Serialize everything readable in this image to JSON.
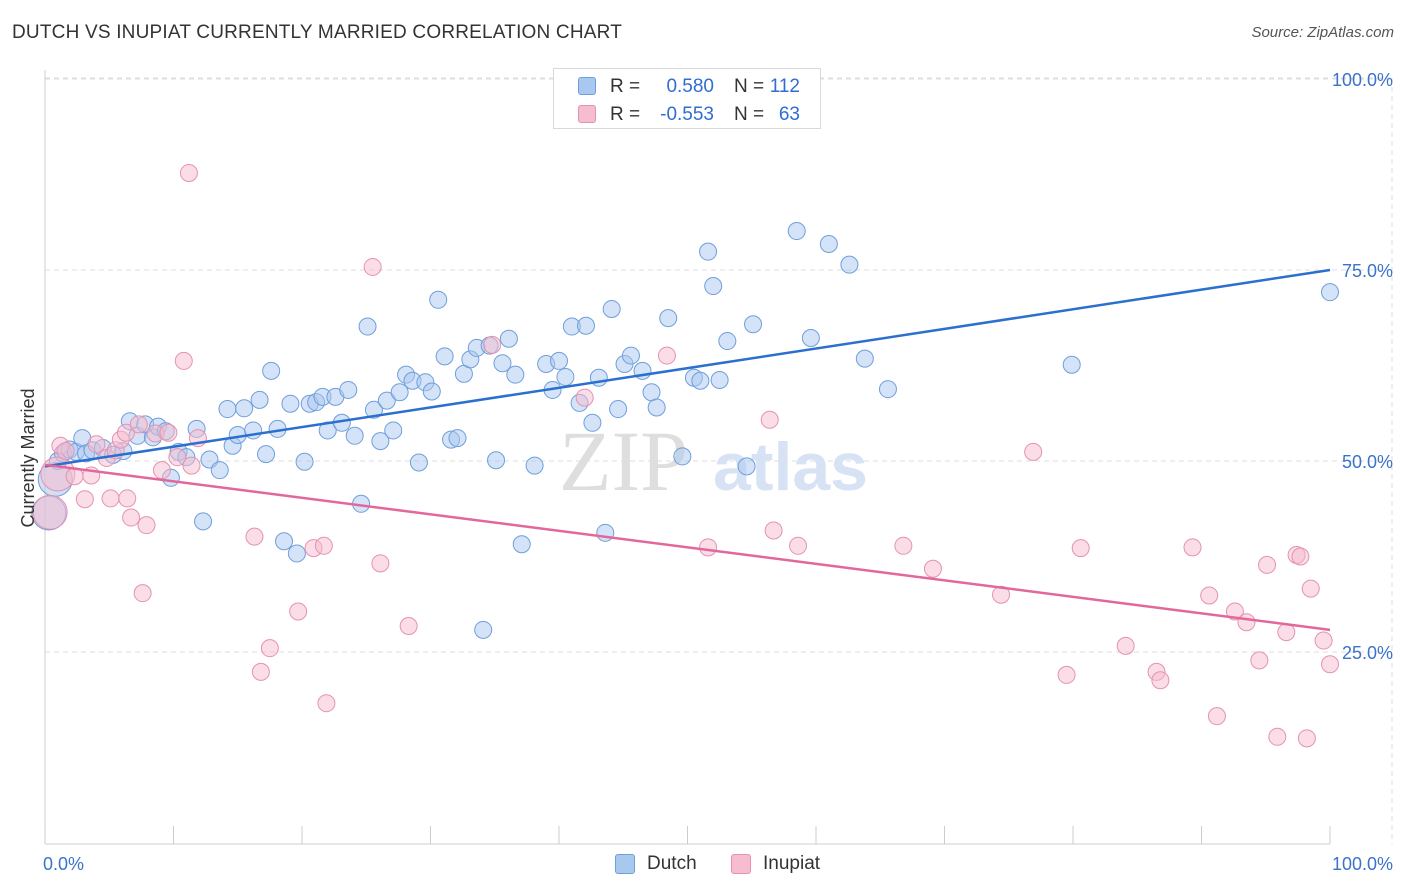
{
  "title": "DUTCH VS INUPIAT CURRENTLY MARRIED CORRELATION CHART",
  "source": "Source: ZipAtlas.com",
  "watermark": {
    "zip": "ZIP",
    "atlas": "atlas"
  },
  "colors": {
    "dutch_fill": "#a9c8ef",
    "dutch_stroke": "#6f9fda",
    "dutch_line": "#2b6fcf",
    "inupiat_fill": "#f6bcd0",
    "inupiat_stroke": "#e592b0",
    "inupiat_line": "#e2679a",
    "tick_label": "#3a72cc",
    "grid": "#dddddd"
  },
  "legend": {
    "rows": [
      {
        "r_label": "R =",
        "r_value": "0.580",
        "n_label": "N =",
        "n_value": "112"
      },
      {
        "r_label": "R =",
        "r_value": "-0.553",
        "n_label": "N =",
        "n_value": "63"
      }
    ]
  },
  "chart_data": {
    "type": "scatter",
    "title": "DUTCH VS INUPIAT CURRENTLY MARRIED CORRELATION CHART",
    "xlabel": "",
    "ylabel": "Currently Married",
    "xlim": [
      0,
      100
    ],
    "ylim": [
      0,
      105
    ],
    "x_tick_labels": [
      "0.0%",
      "100.0%"
    ],
    "y_ticks": [
      {
        "value": 25,
        "label": "25.0%"
      },
      {
        "value": 50,
        "label": "50.0%"
      },
      {
        "value": 75,
        "label": "75.0%"
      },
      {
        "value": 100,
        "label": "100.0%"
      }
    ],
    "grid": true,
    "legend_position": "top-center",
    "series": [
      {
        "name": "Dutch",
        "r": 0.58,
        "n": 112,
        "trend": {
          "x": [
            0,
            100
          ],
          "y": [
            49.3,
            75.0
          ]
        },
        "big_points": [
          [
            0.3,
            43.2
          ],
          [
            0.8,
            47.6
          ]
        ],
        "points": [
          [
            1,
            50
          ],
          [
            1.4,
            51
          ],
          [
            1.9,
            51.5
          ],
          [
            2.4,
            51.2
          ],
          [
            2.9,
            53
          ],
          [
            3.2,
            51
          ],
          [
            3.7,
            51.4
          ],
          [
            4.5,
            51.7
          ],
          [
            5.3,
            50.8
          ],
          [
            6.1,
            51.3
          ],
          [
            6.6,
            55.2
          ],
          [
            7.2,
            53.3
          ],
          [
            7.8,
            54.8
          ],
          [
            8.4,
            53.1
          ],
          [
            8.8,
            54.5
          ],
          [
            9.4,
            53.9
          ],
          [
            9.8,
            47.8
          ],
          [
            10.4,
            51.2
          ],
          [
            11,
            50.5
          ],
          [
            11.8,
            54.2
          ],
          [
            12.3,
            42.1
          ],
          [
            12.8,
            50.2
          ],
          [
            13.6,
            48.8
          ],
          [
            14.2,
            56.8
          ],
          [
            14.6,
            52
          ],
          [
            15,
            53.4
          ],
          [
            15.5,
            56.9
          ],
          [
            16.2,
            54
          ],
          [
            16.7,
            58
          ],
          [
            17.2,
            50.9
          ],
          [
            17.6,
            61.8
          ],
          [
            18.1,
            54.2
          ],
          [
            18.6,
            39.5
          ],
          [
            19.1,
            57.5
          ],
          [
            19.6,
            37.9
          ],
          [
            20.2,
            49.9
          ],
          [
            20.6,
            57.5
          ],
          [
            21.1,
            57.7
          ],
          [
            21.6,
            58.4
          ],
          [
            22,
            54
          ],
          [
            22.6,
            58.4
          ],
          [
            23.1,
            55
          ],
          [
            23.6,
            59.3
          ],
          [
            24.1,
            53.3
          ],
          [
            24.6,
            44.4
          ],
          [
            25.1,
            67.6
          ],
          [
            25.6,
            56.7
          ],
          [
            26.1,
            52.6
          ],
          [
            26.6,
            57.9
          ],
          [
            27.1,
            54
          ],
          [
            27.6,
            59
          ],
          [
            28.1,
            61.3
          ],
          [
            28.6,
            60.5
          ],
          [
            29.1,
            49.8
          ],
          [
            29.6,
            60.3
          ],
          [
            30.1,
            59.1
          ],
          [
            30.6,
            71.1
          ],
          [
            31.1,
            63.7
          ],
          [
            31.6,
            52.8
          ],
          [
            32.1,
            53
          ],
          [
            32.6,
            61.4
          ],
          [
            33.1,
            63.3
          ],
          [
            33.6,
            64.8
          ],
          [
            34.1,
            27.9
          ],
          [
            34.6,
            65.1
          ],
          [
            35.1,
            50.1
          ],
          [
            35.6,
            62.8
          ],
          [
            36.1,
            66
          ],
          [
            36.6,
            61.3
          ],
          [
            37.1,
            39.1
          ],
          [
            38.1,
            49.4
          ],
          [
            39,
            62.7
          ],
          [
            39.5,
            59.3
          ],
          [
            40,
            63.1
          ],
          [
            40.5,
            61
          ],
          [
            41,
            67.6
          ],
          [
            41.6,
            57.6
          ],
          [
            42.1,
            67.7
          ],
          [
            42.6,
            55
          ],
          [
            43.1,
            60.9
          ],
          [
            43.6,
            40.6
          ],
          [
            44.1,
            69.9
          ],
          [
            44.6,
            56.8
          ],
          [
            45.1,
            62.7
          ],
          [
            45.6,
            63.8
          ],
          [
            46.5,
            61.8
          ],
          [
            47.2,
            59
          ],
          [
            47.6,
            57
          ],
          [
            48.5,
            68.7
          ],
          [
            49.6,
            50.6
          ],
          [
            50.5,
            60.9
          ],
          [
            51,
            60.5
          ],
          [
            51.6,
            77.4
          ],
          [
            52,
            72.9
          ],
          [
            52.5,
            60.6
          ],
          [
            53.1,
            65.7
          ],
          [
            54.6,
            49.3
          ],
          [
            55.1,
            67.9
          ],
          [
            58.5,
            80.1
          ],
          [
            59.6,
            66.1
          ],
          [
            61,
            78.4
          ],
          [
            62.6,
            75.7
          ],
          [
            63.8,
            63.4
          ],
          [
            65.6,
            59.4
          ],
          [
            79.9,
            62.6
          ],
          [
            100,
            72.1
          ]
        ]
      },
      {
        "name": "Inupiat",
        "r": -0.553,
        "n": 63,
        "trend": {
          "x": [
            0,
            100
          ],
          "y": [
            49.5,
            27.9
          ]
        },
        "big_points": [
          [
            0.4,
            43.3
          ],
          [
            1,
            48.3
          ]
        ],
        "points": [
          [
            1.2,
            52
          ],
          [
            1.6,
            51.3
          ],
          [
            2.3,
            48
          ],
          [
            3.1,
            45
          ],
          [
            3.6,
            48.1
          ],
          [
            4,
            52.2
          ],
          [
            4.8,
            50.4
          ],
          [
            5.1,
            45.1
          ],
          [
            5.5,
            51.4
          ],
          [
            5.9,
            52.8
          ],
          [
            6.3,
            53.7
          ],
          [
            6.4,
            45.1
          ],
          [
            6.7,
            42.6
          ],
          [
            7.3,
            54.8
          ],
          [
            7.6,
            32.7
          ],
          [
            7.9,
            41.6
          ],
          [
            8.6,
            53.6
          ],
          [
            9.1,
            48.8
          ],
          [
            9.6,
            53.7
          ],
          [
            10.3,
            50.5
          ],
          [
            10.8,
            63.1
          ],
          [
            11.4,
            49.4
          ],
          [
            11.2,
            87.7
          ],
          [
            11.9,
            53
          ],
          [
            16.3,
            40.1
          ],
          [
            16.8,
            22.4
          ],
          [
            17.5,
            25.5
          ],
          [
            19.7,
            30.3
          ],
          [
            20.9,
            38.6
          ],
          [
            21.7,
            38.9
          ],
          [
            21.9,
            18.3
          ],
          [
            25.5,
            75.4
          ],
          [
            26.1,
            36.6
          ],
          [
            28.3,
            28.4
          ],
          [
            34.8,
            65.2
          ],
          [
            42,
            58.3
          ],
          [
            48.4,
            63.8
          ],
          [
            51.6,
            38.7
          ],
          [
            56.4,
            55.4
          ],
          [
            56.7,
            40.9
          ],
          [
            58.6,
            38.9
          ],
          [
            66.8,
            38.9
          ],
          [
            69.1,
            35.9
          ],
          [
            74.4,
            32.5
          ],
          [
            76.9,
            51.2
          ],
          [
            79.5,
            22
          ],
          [
            80.6,
            38.6
          ],
          [
            84.1,
            25.8
          ],
          [
            86.5,
            22.4
          ],
          [
            86.8,
            21.3
          ],
          [
            89.3,
            38.7
          ],
          [
            90.6,
            32.4
          ],
          [
            91.2,
            16.6
          ],
          [
            92.6,
            30.3
          ],
          [
            93.5,
            28.9
          ],
          [
            94.5,
            23.9
          ],
          [
            95.1,
            36.4
          ],
          [
            95.9,
            13.9
          ],
          [
            96.6,
            27.6
          ],
          [
            97.4,
            37.7
          ],
          [
            97.7,
            37.5
          ],
          [
            98.2,
            13.7
          ],
          [
            98.5,
            33.3
          ],
          [
            99.5,
            26.5
          ],
          [
            100,
            23.4
          ]
        ]
      }
    ]
  }
}
